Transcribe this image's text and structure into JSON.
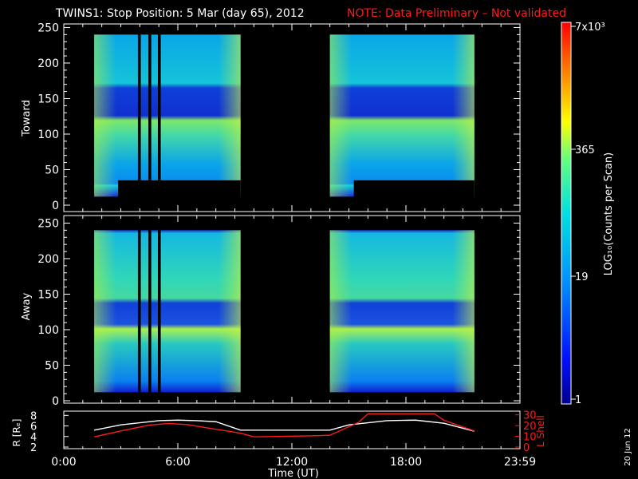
{
  "header": {
    "title": "TWINS1: Stop Position:  5 Mar (day  65), 2012",
    "note": "NOTE: Data Preliminary – Not validated",
    "note_color": "#ff1a1a"
  },
  "footer": {
    "date_stamp": "20 Jun 12"
  },
  "colorbar": {
    "label": "LOG₁₀(Counts per Scan)",
    "ticks": [
      "7x10³",
      "365",
      "19",
      "1"
    ]
  },
  "chart_data": [
    {
      "type": "heatmap",
      "name": "toward-panel",
      "ylabel": "Toward",
      "ylim": [
        0,
        255
      ],
      "yticks": [
        "0",
        "50",
        "100",
        "150",
        "200",
        "250"
      ],
      "xlim_hours": [
        0,
        24
      ],
      "data_intervals_hours": [
        [
          1.6,
          9.3
        ],
        [
          14.0,
          21.6
        ]
      ],
      "gaps_hours": [
        [
          3.9,
          4.05
        ],
        [
          4.45,
          4.6
        ],
        [
          4.95,
          5.1
        ]
      ],
      "bright_bands_y": [
        [
          30,
          120
        ],
        [
          170,
          240
        ]
      ],
      "dim_bands_y": [
        [
          120,
          170
        ],
        [
          10,
          30
        ]
      ]
    },
    {
      "type": "heatmap",
      "name": "away-panel",
      "ylabel": "Away",
      "ylim": [
        0,
        255
      ],
      "yticks": [
        "0",
        "50",
        "100",
        "150",
        "200",
        "250"
      ],
      "xlim_hours": [
        0,
        24
      ],
      "data_intervals_hours": [
        [
          1.6,
          9.3
        ],
        [
          14.0,
          21.6
        ]
      ],
      "gaps_hours": [
        [
          3.9,
          4.05
        ],
        [
          4.45,
          4.6
        ],
        [
          4.95,
          5.1
        ]
      ],
      "bright_bands_y": [
        [
          20,
          105
        ],
        [
          150,
          235
        ]
      ],
      "dim_bands_y": [
        [
          105,
          150
        ]
      ]
    },
    {
      "type": "line",
      "name": "orbit-panel",
      "ylabel_left": "R [Rₑ]",
      "ylabel_right": "L Shell",
      "left_yticks": [
        "2",
        "4",
        "6",
        "8"
      ],
      "right_yticks": [
        "0",
        "10",
        "20",
        "30"
      ],
      "xticks": [
        "0:00",
        "6:00",
        "12:00",
        "18:00",
        "23:59"
      ],
      "xlabel": "Time (UT)",
      "series": [
        {
          "axis": "left",
          "color": "#ffffff",
          "x": [
            1.6,
            3,
            5,
            6,
            7,
            8,
            9.3,
            14,
            15,
            17,
            18.5,
            20,
            21.6
          ],
          "y": [
            5.2,
            6.2,
            7.0,
            7.1,
            7.0,
            6.8,
            5.2,
            5.2,
            6.2,
            7.0,
            7.1,
            6.5,
            5.0
          ]
        },
        {
          "axis": "right",
          "color": "#ff1a1a",
          "x": [
            1.6,
            3,
            4.5,
            5.5,
            6.5,
            7.5,
            9.3,
            10,
            13,
            14,
            15.5,
            16.0,
            19.5,
            20,
            21.6
          ],
          "y": [
            9.5,
            15,
            20.5,
            22,
            21,
            18,
            13,
            9.5,
            10.5,
            11,
            23,
            31,
            31,
            25,
            15
          ]
        }
      ]
    }
  ]
}
